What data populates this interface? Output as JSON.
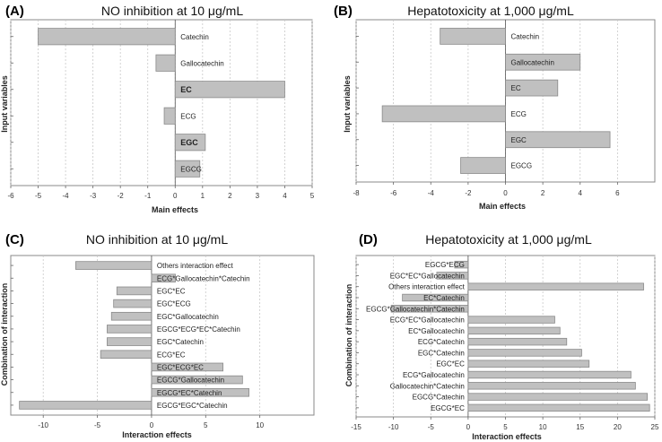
{
  "chart_data": [
    {
      "panel": "(A)",
      "type": "bar",
      "orientation": "horizontal",
      "title": "NO inhibition at 10 μg/mL",
      "xlabel": "Main effects",
      "ylabel": "Input variables",
      "xlim": [
        -6,
        5
      ],
      "xticks": [
        -6,
        -5,
        -4,
        -3,
        -2,
        -1,
        0,
        1,
        2,
        3,
        4,
        5
      ],
      "label_side": "right",
      "categories": [
        "Catechin",
        "Gallocatechin",
        "EC",
        "ECG",
        "EGC",
        "EGCG"
      ],
      "bold_categories": [
        "EC",
        "EGC"
      ],
      "values": [
        -5.0,
        -0.7,
        4.0,
        -0.4,
        1.1,
        0.9
      ]
    },
    {
      "panel": "(B)",
      "type": "bar",
      "orientation": "horizontal",
      "title": "Hepatotoxicity at 1,000 μg/mL",
      "xlabel": "Main effects",
      "ylabel": "Input variables",
      "xlim": [
        -8,
        8
      ],
      "xticks": [
        -8,
        -6,
        -4,
        -2,
        0,
        2,
        4,
        6
      ],
      "label_side": "right",
      "categories": [
        "Catechin",
        "Gallocatechin",
        "EC",
        "ECG",
        "EGC",
        "EGCG"
      ],
      "bold_categories": [],
      "values": [
        -3.5,
        4.0,
        2.8,
        -6.6,
        5.6,
        -2.4
      ]
    },
    {
      "panel": "(C)",
      "type": "bar",
      "orientation": "horizontal",
      "title": "NO inhibition at 10 μg/mL",
      "xlabel": "Interaction effects",
      "ylabel": "Combination of interaction",
      "xlim": [
        -13,
        15
      ],
      "xticks": [
        -10,
        -5,
        0,
        5,
        10
      ],
      "label_side": "right",
      "categories": [
        "Others interaction effect",
        "ECG*Gallocatechin*Catechin",
        "EGC*EC",
        "EGC*ECG",
        "EGC*Gallocatechin",
        "EGCG*ECG*EC*Catechin",
        "EGC*Catechin",
        "ECG*EC",
        "EGC*ECG*EC",
        "EGCG*Gallocatechin",
        "EGCG*EC*Catechin",
        "EGCG*EGC*Catechin"
      ],
      "bold_categories": [],
      "values": [
        -7.0,
        2.2,
        -3.2,
        -3.5,
        -3.7,
        -4.1,
        -4.1,
        -4.7,
        6.6,
        8.4,
        9.0,
        -12.2
      ]
    },
    {
      "panel": "(D)",
      "type": "bar",
      "orientation": "horizontal",
      "title": "Hepatotoxicity at 1,000 μg/mL",
      "xlabel": "Interaction effects",
      "ylabel": "Combination of interaction",
      "xlim": [
        -15,
        25
      ],
      "xticks": [
        -15,
        -10,
        -5,
        0,
        5,
        10,
        15,
        20,
        25
      ],
      "label_side": "left",
      "categories": [
        "EGCG*ECG",
        "EGC*EC*Gallocatechin",
        "Others interaction effect",
        "EC*Catechin",
        "EGCG*Gallocatechin*Catechin",
        "ECG*EC*Gallocatechin",
        "EC*Gallocatechin",
        "ECG*Catechin",
        "EGC*Catechin",
        "EGC*EC",
        "ECG*Gallocatechin",
        "Gallocatechin*Catechin",
        "EGCG*Catechin",
        "EGCG*EC"
      ],
      "bold_categories": [],
      "values": [
        -1.8,
        -4.2,
        23.5,
        -8.8,
        -10.3,
        11.6,
        12.3,
        13.2,
        15.2,
        16.2,
        21.8,
        22.4,
        24.0,
        24.3
      ]
    }
  ]
}
